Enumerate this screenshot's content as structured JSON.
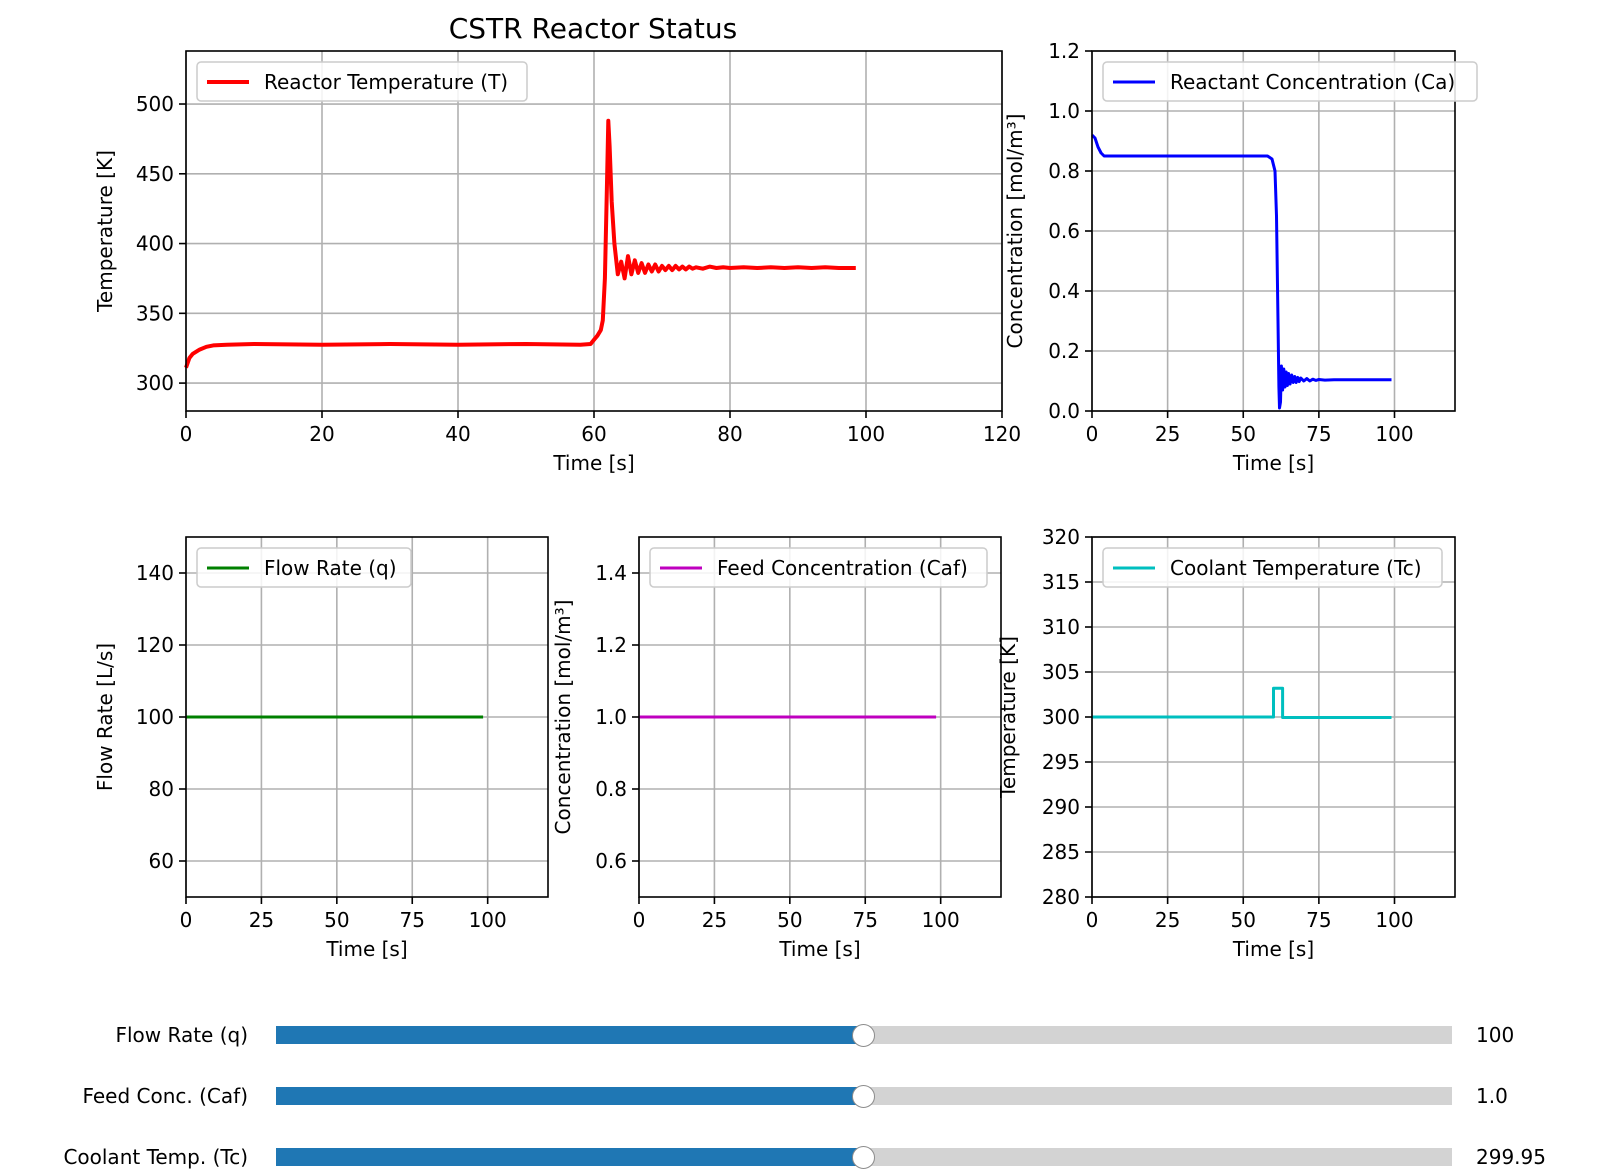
{
  "figure_title": "CSTR Reactor Status",
  "chart_data": [
    {
      "id": "temp",
      "type": "line",
      "title": "",
      "xlabel": "Time [s]",
      "ylabel": "Temperature [K]",
      "xlim": [
        0,
        120
      ],
      "ylim": [
        280,
        538
      ],
      "xticks": [
        0,
        20,
        40,
        60,
        80,
        100,
        120
      ],
      "yticks": [
        300,
        350,
        400,
        450,
        500
      ],
      "grid": true,
      "legend_position": "top-left",
      "series": [
        {
          "name": "Reactor Temperature (T)",
          "color": "#ff0000",
          "x": [
            0,
            0.5,
            1,
            2,
            3,
            4,
            6,
            10,
            20,
            30,
            40,
            50,
            58,
            59.5,
            60,
            60.5,
            61,
            61.3,
            61.6,
            61.9,
            62.1,
            62.3,
            62.6,
            63,
            63.5,
            64,
            64.5,
            65,
            65.5,
            66,
            66.5,
            67,
            67.5,
            68,
            68.5,
            69,
            69.5,
            70,
            70.5,
            71,
            71.5,
            72,
            72.5,
            73,
            73.5,
            74,
            74.5,
            75,
            76,
            77,
            78,
            79,
            80,
            82,
            84,
            86,
            88,
            90,
            92,
            94,
            96,
            98.5
          ],
          "y": [
            311,
            318,
            321,
            324,
            326,
            327,
            327.5,
            328,
            327.5,
            328,
            327.5,
            328,
            327.5,
            328,
            331,
            334,
            338,
            345,
            375,
            440,
            488,
            470,
            430,
            400,
            378,
            387,
            375,
            391,
            378,
            388,
            379,
            386,
            379,
            385,
            380,
            385,
            380,
            384,
            381,
            384,
            381,
            384,
            381.5,
            383.5,
            381.5,
            383.5,
            382,
            383,
            382,
            383.5,
            382.5,
            383,
            382.5,
            383,
            382.5,
            383,
            382.5,
            383,
            382.5,
            383,
            382.5,
            382.5
          ]
        }
      ]
    },
    {
      "id": "ca",
      "type": "line",
      "title": "",
      "xlabel": "Time [s]",
      "ylabel": "Concentration [mol/m³]",
      "xlim": [
        0,
        120
      ],
      "ylim": [
        0,
        1.2
      ],
      "xticks": [
        0,
        25,
        50,
        75,
        100
      ],
      "yticks": [
        0.0,
        0.2,
        0.4,
        0.6,
        0.8,
        1.0,
        1.2
      ],
      "grid": true,
      "legend_position": "top-left",
      "series": [
        {
          "name": "Reactant Concentration (Ca)",
          "color": "#0000ff",
          "x": [
            0,
            1,
            2,
            3,
            4,
            5,
            10,
            20,
            30,
            40,
            50,
            58,
            59.5,
            60.5,
            61,
            61.5,
            61.8,
            62,
            62.3,
            62.6,
            63,
            63.4,
            63.8,
            64.2,
            64.6,
            65,
            65.5,
            66,
            66.5,
            67,
            67.5,
            68,
            68.5,
            69,
            70,
            71,
            72,
            73,
            74,
            75,
            77,
            80,
            85,
            90,
            95,
            99
          ],
          "y": [
            0.92,
            0.91,
            0.88,
            0.86,
            0.85,
            0.85,
            0.85,
            0.85,
            0.85,
            0.85,
            0.85,
            0.85,
            0.84,
            0.8,
            0.65,
            0.3,
            0.08,
            0.01,
            0.03,
            0.15,
            0.07,
            0.14,
            0.08,
            0.13,
            0.085,
            0.125,
            0.09,
            0.12,
            0.095,
            0.115,
            0.095,
            0.112,
            0.098,
            0.11,
            0.1,
            0.108,
            0.1,
            0.106,
            0.102,
            0.105,
            0.103,
            0.104,
            0.104,
            0.104,
            0.104,
            0.104
          ]
        }
      ]
    },
    {
      "id": "q",
      "type": "line",
      "title": "",
      "xlabel": "Time [s]",
      "ylabel": "Flow Rate [L/s]",
      "xlim": [
        0,
        120
      ],
      "ylim": [
        50,
        150
      ],
      "xticks": [
        0,
        25,
        50,
        75,
        100
      ],
      "yticks": [
        60,
        80,
        100,
        120,
        140
      ],
      "grid": true,
      "legend_position": "top-left",
      "series": [
        {
          "name": "Flow Rate (q)",
          "color": "#008000",
          "x": [
            0,
            98.5
          ],
          "y": [
            100,
            100
          ]
        }
      ]
    },
    {
      "id": "caf",
      "type": "line",
      "title": "",
      "xlabel": "Time [s]",
      "ylabel": "Concentration [mol/m³]",
      "xlim": [
        0,
        120
      ],
      "ylim": [
        0.5,
        1.5
      ],
      "xticks": [
        0,
        25,
        50,
        75,
        100
      ],
      "yticks": [
        0.6,
        0.8,
        1.0,
        1.2,
        1.4
      ],
      "grid": true,
      "legend_position": "top-left",
      "series": [
        {
          "name": "Feed Concentration (Caf)",
          "color": "#bf00bf",
          "x": [
            0,
            98.5
          ],
          "y": [
            1.0,
            1.0
          ]
        }
      ]
    },
    {
      "id": "tc",
      "type": "line",
      "title": "",
      "xlabel": "Time [s]",
      "ylabel": "Temperature [K]",
      "xlim": [
        0,
        120
      ],
      "ylim": [
        280,
        320
      ],
      "xticks": [
        0,
        25,
        50,
        75,
        100
      ],
      "yticks": [
        280,
        285,
        290,
        295,
        300,
        305,
        310,
        315,
        320
      ],
      "grid": true,
      "legend_position": "top-left",
      "series": [
        {
          "name": "Coolant Temperature (Tc)",
          "color": "#00bfbf",
          "x": [
            0,
            60,
            60,
            63,
            63,
            99
          ],
          "y": [
            300,
            300,
            303.2,
            303.2,
            299.95,
            299.95
          ]
        }
      ]
    }
  ],
  "sliders": [
    {
      "label": "Flow Rate (q)",
      "value": "100",
      "fraction": 0.5
    },
    {
      "label": "Feed Conc. (Caf)",
      "value": "1.0",
      "fraction": 0.5
    },
    {
      "label": "Coolant Temp. (Tc)",
      "value": "299.95",
      "fraction": 0.4998
    }
  ]
}
